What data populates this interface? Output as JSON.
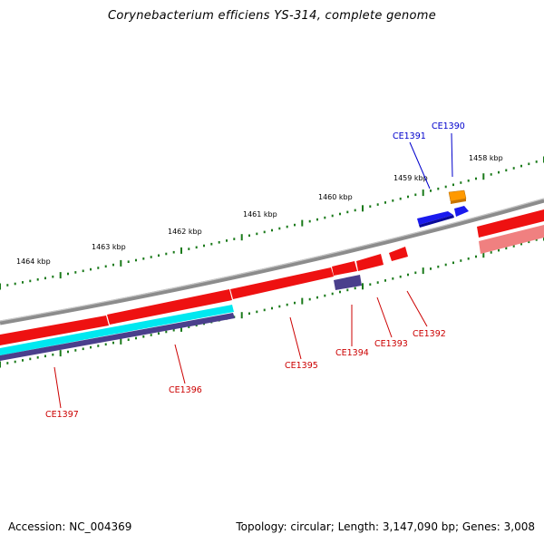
{
  "title": "Corynebacterium efficiens YS-314, complete genome",
  "footer": {
    "accession": "Accession: NC_004369",
    "summary": "Topology: circular; Length: 3,147,090 bp; Genes: 3,008"
  },
  "colors": {
    "backbone": "#8c8c8c",
    "cds": "#ee1111",
    "cds_light": "#f08080",
    "trna": "#1a1aee",
    "rrna": "#ff9900",
    "cyan": "#00e8f0",
    "purple": "#4a3f8c",
    "tick": "#1a7a1a",
    "label_forward": "#0000cc",
    "label_reverse": "#cc0000"
  },
  "scale_labels": [
    "1458 kbp",
    "1459 kbp",
    "1460 kbp",
    "1461 kbp",
    "1462 kbp",
    "1463 kbp",
    "1464 kbp"
  ],
  "gene_labels": [
    {
      "name": "CE1390",
      "strand": "forward"
    },
    {
      "name": "CE1391",
      "strand": "forward"
    },
    {
      "name": "CE1392",
      "strand": "reverse"
    },
    {
      "name": "CE1393",
      "strand": "reverse"
    },
    {
      "name": "CE1394",
      "strand": "reverse"
    },
    {
      "name": "CE1395",
      "strand": "reverse"
    },
    {
      "name": "CE1396",
      "strand": "reverse"
    },
    {
      "name": "CE1397",
      "strand": "reverse"
    }
  ]
}
